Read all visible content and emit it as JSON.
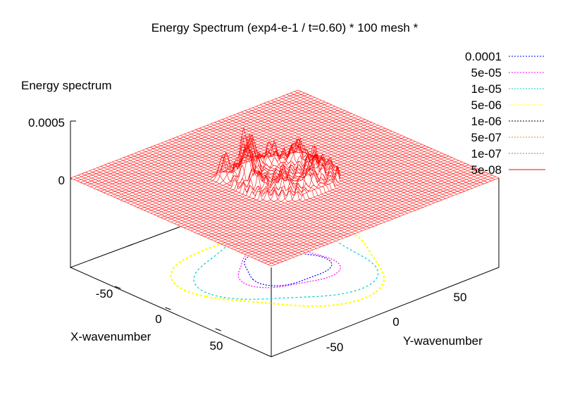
{
  "chart_data": {
    "type": "surface",
    "title": "Energy Spectrum (exp4-e-1 / t=0.60) * 100 mesh *",
    "xlabel": "X-wavenumber",
    "ylabel": "Y-wavenumber",
    "zlabel": "Energy spectrum",
    "x_ticks": [
      "-50",
      "0",
      "50"
    ],
    "y_ticks": [
      "-50",
      "0",
      "50"
    ],
    "z_ticks": [
      "0.0005",
      "0"
    ],
    "xlim": [
      -100,
      100
    ],
    "ylim": [
      -100,
      100
    ],
    "zlim": [
      0,
      0.0005
    ],
    "grid_count": 100,
    "surface_color": "#ff0000",
    "contour_levels": [
      {
        "label": "0.0001",
        "color": "#0000ff",
        "radius": 28
      },
      {
        "label": "5e-05",
        "color": "#ff00ff",
        "radius": 33
      },
      {
        "label": "1e-05",
        "color": "#00cccc",
        "radius": 58
      },
      {
        "label": "5e-06",
        "color": "#ffff00",
        "radius": 68
      },
      {
        "label": "1e-06",
        "color": "#000000",
        "radius": 0
      },
      {
        "label": "5e-07",
        "color": "#ff8000",
        "radius": 0
      },
      {
        "label": "1e-07",
        "color": "#808080",
        "radius": 0
      },
      {
        "label": "5e-08",
        "color": "#ff0000",
        "radius": 0
      }
    ],
    "peaks": [
      {
        "x": 18,
        "y": -20,
        "z": 0.00036
      },
      {
        "x": 22,
        "y": -12,
        "z": 0.00031
      },
      {
        "x": 10,
        "y": -24,
        "z": 0.00026
      },
      {
        "x": 24,
        "y": 0,
        "z": 0.00022
      },
      {
        "x": 14,
        "y": 14,
        "z": 0.00019
      },
      {
        "x": -2,
        "y": 22,
        "z": 0.0002
      },
      {
        "x": -14,
        "y": 16,
        "z": 0.00017
      },
      {
        "x": -22,
        "y": 4,
        "z": 0.00015
      },
      {
        "x": -20,
        "y": -12,
        "z": 0.00016
      },
      {
        "x": -8,
        "y": -22,
        "z": 0.00018
      },
      {
        "x": 4,
        "y": -28,
        "z": 0.00021
      },
      {
        "x": 28,
        "y": -28,
        "z": 0.00024
      },
      {
        "x": -28,
        "y": -18,
        "z": 0.00013
      }
    ],
    "legend_position": "top-right"
  }
}
